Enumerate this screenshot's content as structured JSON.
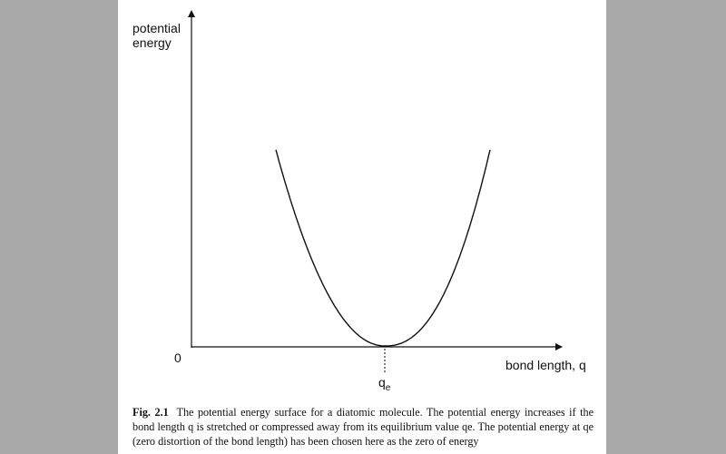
{
  "diagram": {
    "y_axis_label_line1": "potential",
    "y_axis_label_line2": "energy",
    "origin_label": "0",
    "x_axis_label": "bond length, q",
    "equilibrium_symbol": "q",
    "equilibrium_subscript": "e"
  },
  "caption": {
    "label": "Fig. 2.1",
    "text": "The potential energy surface for a diatomic molecule. The potential energy increases if the bond length q is stretched or compressed away from its equilibrium value qe. The potential energy at qe (zero distortion of the bond length) has been chosen here as the zero of energy"
  }
}
